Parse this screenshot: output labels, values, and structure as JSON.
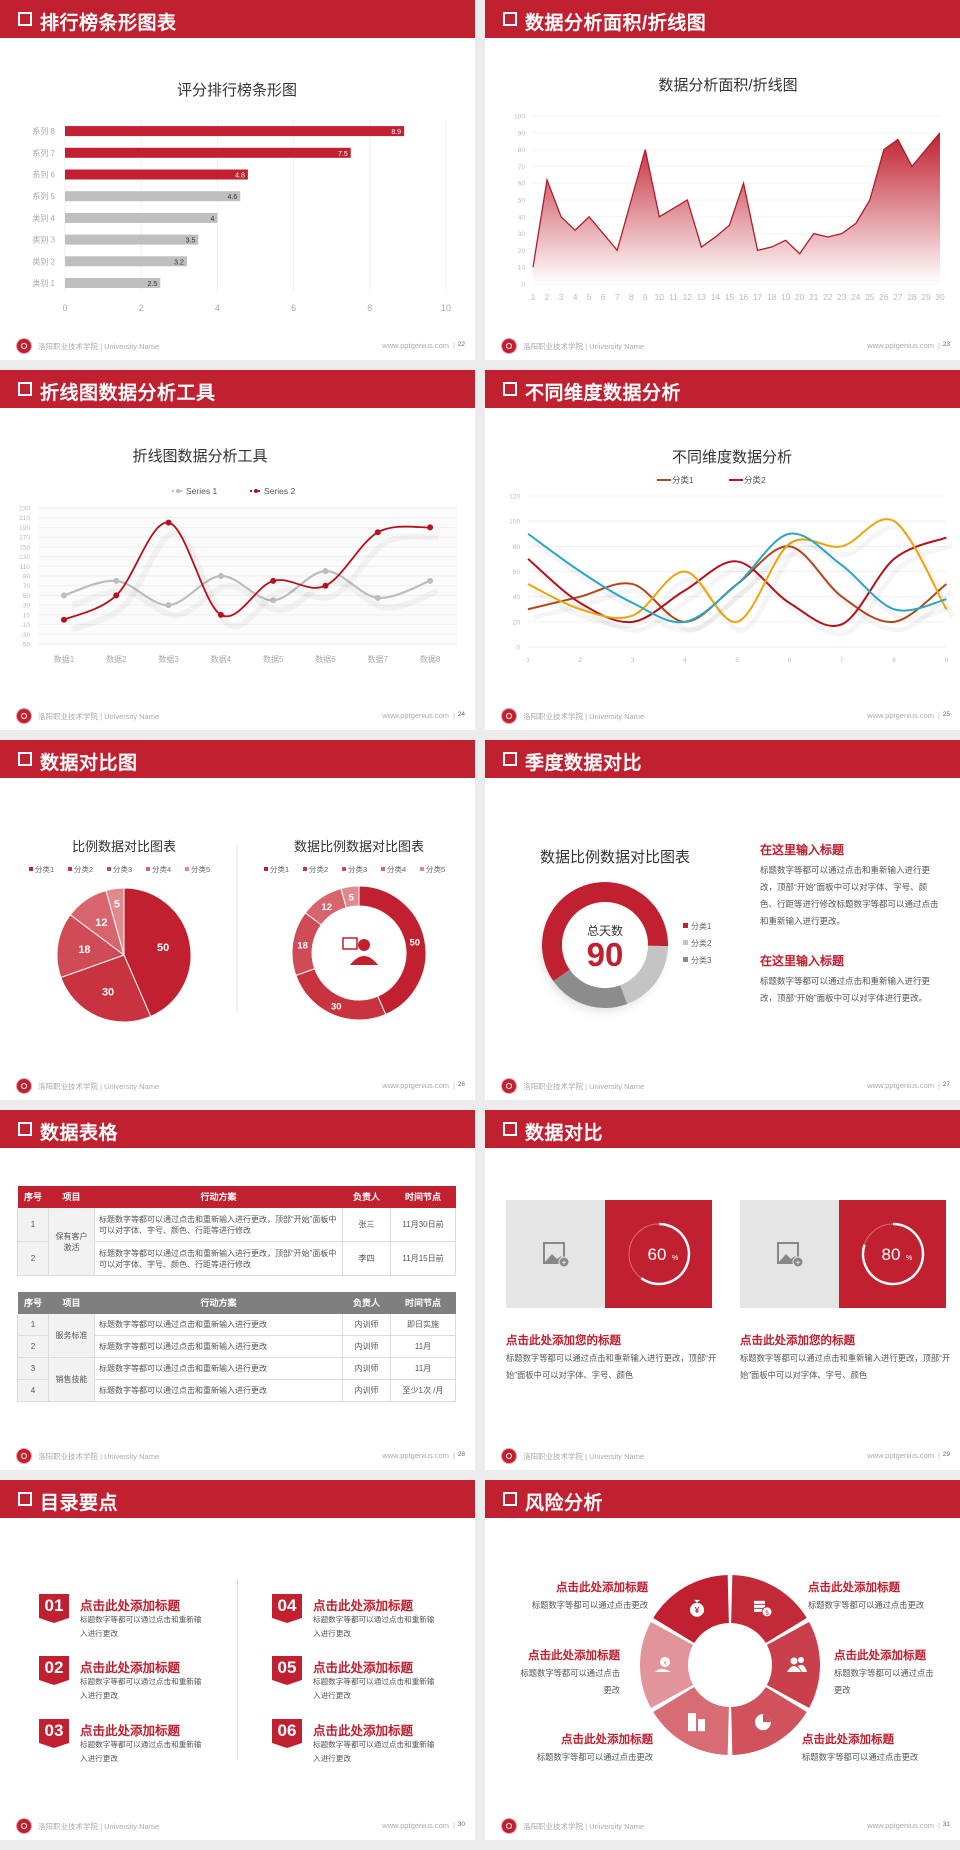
{
  "footer": {
    "school": "洛阳职业技术学院 | University Name",
    "url": "www.pptgenius.com",
    "separator": "|"
  },
  "colors": {
    "brand_red": "#c0202f",
    "gray": "#bfbfbf",
    "dark_gray": "#8c8c8c"
  },
  "slides": [
    {
      "title": "排行榜条形图表",
      "page": "22"
    },
    {
      "title": "数据分析面积/折线图",
      "page": "23"
    },
    {
      "title": "折线图数据分析工具",
      "page": "24"
    },
    {
      "title": "不同维度数据分析",
      "page": "25"
    },
    {
      "title": "数据对比图",
      "page": "26"
    },
    {
      "title": "季度数据对比",
      "page": "27"
    },
    {
      "title": "数据表格",
      "page": "28"
    },
    {
      "title": "数据对比",
      "page": "29"
    },
    {
      "title": "目录要点",
      "page": "30"
    },
    {
      "title": "风险分析",
      "page": "31"
    }
  ],
  "header_icon": "checkbox-square-icon",
  "chart_data": [
    {
      "type": "bar",
      "orientation": "horizontal",
      "title": "评分排行榜条形图",
      "categories": [
        "类别 1",
        "类别 2",
        "类别 3",
        "类别 4",
        "系列 5",
        "系列 6",
        "系列 7",
        "系列 8"
      ],
      "values": [
        2.5,
        3.2,
        3.5,
        4,
        4.6,
        4.8,
        7.5,
        8.9
      ],
      "highlight": [
        false,
        false,
        false,
        false,
        false,
        true,
        true,
        true
      ],
      "xlim": [
        0,
        10
      ],
      "xticks": [
        0,
        2,
        4,
        6,
        8,
        10
      ],
      "grid": true,
      "data_labels": true
    },
    {
      "type": "area",
      "title": "数据分析面积/折线图",
      "x": [
        1,
        2,
        3,
        4,
        5,
        6,
        7,
        8,
        9,
        10,
        11,
        12,
        13,
        14,
        15,
        16,
        17,
        18,
        19,
        20,
        21,
        22,
        23,
        24,
        25,
        26,
        27,
        28,
        29,
        30
      ],
      "values": [
        10,
        62,
        40,
        32,
        40,
        30,
        20,
        50,
        80,
        40,
        45,
        50,
        22,
        28,
        35,
        60,
        20,
        22,
        26,
        18,
        30,
        28,
        30,
        36,
        50,
        80,
        86,
        70,
        80,
        90
      ],
      "ylim": [
        0,
        100
      ],
      "yticks": [
        0,
        10,
        20,
        30,
        40,
        50,
        60,
        70,
        80,
        90,
        100
      ],
      "grid": true,
      "color": "#b01c2b"
    },
    {
      "type": "line",
      "smooth": true,
      "title": "折线图数据分析工具",
      "categories": [
        "数据1",
        "数据2",
        "数据3",
        "数据4",
        "数据5",
        "数据6",
        "数据7",
        "数据8"
      ],
      "series": [
        {
          "name": "Series 1",
          "values": [
            50,
            80,
            30,
            90,
            40,
            100,
            45,
            80
          ],
          "color": "#bdbdbd"
        },
        {
          "name": "Series 2",
          "values": [
            0,
            50,
            200,
            10,
            80,
            70,
            180,
            190
          ],
          "color": "#b5121b"
        }
      ],
      "ylim": [
        -50,
        230
      ],
      "yticks": [
        -50,
        -30,
        -10,
        10,
        30,
        50,
        70,
        90,
        110,
        130,
        150,
        170,
        190,
        210,
        230
      ],
      "legend": "top",
      "grid": true
    },
    {
      "type": "line",
      "smooth": true,
      "title": "不同维度数据分析",
      "x": [
        1,
        2,
        3,
        4,
        5,
        6,
        7,
        8,
        9
      ],
      "series": [
        {
          "name": "分类1",
          "values": [
            30,
            40,
            50,
            20,
            50,
            80,
            40,
            20,
            50
          ],
          "color": "#b5451b"
        },
        {
          "name": "分类2",
          "values": [
            70,
            35,
            20,
            45,
            68,
            35,
            18,
            70,
            87
          ],
          "color": "#b5121b"
        },
        {
          "values": [
            50,
            30,
            25,
            60,
            20,
            82,
            80,
            100,
            30
          ],
          "color": "#f0a30a"
        },
        {
          "values": [
            90,
            60,
            35,
            20,
            50,
            90,
            65,
            30,
            38
          ],
          "color": "#2aa7c4"
        }
      ],
      "ylim": [
        0,
        120
      ],
      "yticks": [
        0,
        20,
        40,
        60,
        80,
        100,
        120
      ],
      "legend": "top",
      "grid": true
    },
    {
      "type": "pie",
      "title": "比例数据对比图表",
      "categories": [
        "分类1",
        "分类2",
        "分类3",
        "分类4",
        "分类5"
      ],
      "values": [
        50,
        30,
        18,
        12,
        5
      ],
      "colors": [
        "#c0202f",
        "#c8333f",
        "#cf4b56",
        "#d8646d",
        "#e08a90"
      ],
      "legend": "top"
    },
    {
      "type": "pie",
      "donut": true,
      "title": "数据比例数据对比图表",
      "categories": [
        "分类1",
        "分类2",
        "分类3",
        "分类4",
        "分类5"
      ],
      "values": [
        50,
        30,
        18,
        12,
        5
      ],
      "colors": [
        "#c0202f",
        "#c8333f",
        "#cf4b56",
        "#d8646d",
        "#e08a90"
      ],
      "legend": "top",
      "center_icon": "presenter-icon"
    },
    {
      "type": "pie",
      "donut": true,
      "title": "数据比例数据对比图表",
      "center_label": "总天数",
      "center_value": "90",
      "categories": [
        "分类1",
        "分类2",
        "分类3"
      ],
      "values": [
        60,
        19,
        21
      ],
      "colors": [
        "#c0202f",
        "#c4c4c4",
        "#8c8c8c"
      ],
      "legend": "right"
    }
  ],
  "slide27": {
    "blocks": [
      {
        "heading": "在这里输入标题",
        "text": "标题数字等都可以通过点击和重新输入进行更改，顶部“开始”面板中可以对字体、字号、颜色、行距等进行修改标题数字等都可以通过点击和重新输入进行更改。"
      },
      {
        "heading": "在这里输入标题",
        "text": "标题数字等都可以通过点击和重新输入进行更改，顶部“开始”面板中可以对字体进行更改。"
      }
    ]
  },
  "table": {
    "headers": [
      "序号",
      "项目",
      "行动方案",
      "负责人",
      "时间节点"
    ],
    "table1": {
      "group": "保有客户激活",
      "rows": [
        {
          "no": "1",
          "plan": "标题数字等都可以通过点击和重新输入进行更改，顶部“开始”面板中可以对字体、字号、颜色、行距等进行修改",
          "owner": "张三",
          "time": "11月30日前"
        },
        {
          "no": "2",
          "plan": "标题数字等都可以通过点击和重新输入进行更改，顶部“开始”面板中可以对字体、字号、颜色、行距等进行修改",
          "owner": "李四",
          "time": "11月15日前"
        }
      ]
    },
    "table2": {
      "groups": [
        "服务标准",
        "销售技能"
      ],
      "rows": [
        {
          "no": "1",
          "plan": "标题数字等都可以通过点击和重新输入进行更改",
          "owner": "内训师",
          "time": "即日实施"
        },
        {
          "no": "2",
          "plan": "标题数字等都可以通过点击和重新输入进行更改",
          "owner": "内训师",
          "time": "11月"
        },
        {
          "no": "3",
          "plan": "标题数字等都可以通过点击和重新输入进行更改",
          "owner": "内训师",
          "time": "11月"
        },
        {
          "no": "4",
          "plan": "标题数字等都可以通过点击和重新输入进行更改",
          "owner": "内训师",
          "time": "至少1次 /月"
        }
      ]
    }
  },
  "compare": {
    "cards": [
      {
        "percent": 60,
        "value": "60",
        "unit": "%",
        "heading": "点击此处添加您的标题",
        "text": "标题数字等都可以通过点击和重新输入进行更改，顶部“开始”面板中可以对字体、字号、颜色",
        "image_icon": "image-add-icon"
      },
      {
        "percent": 80,
        "value": "80",
        "unit": "%",
        "heading": "点击此处添加您的标题",
        "text": "标题数字等都可以通过点击和重新输入进行更改，顶部“开始”面板中可以对字体、字号、颜色",
        "image_icon": "image-add-icon"
      }
    ]
  },
  "toc": {
    "items": [
      {
        "num": "01",
        "title": "点击此处添加标题",
        "text": "标题数字等都可以通过点击和重新输入进行更改"
      },
      {
        "num": "02",
        "title": "点击此处添加标题",
        "text": "标题数字等都可以通过点击和重新输入进行更改"
      },
      {
        "num": "03",
        "title": "点击此处添加标题",
        "text": "标题数字等都可以通过点击和重新输入进行更改"
      },
      {
        "num": "04",
        "title": "点击此处添加标题",
        "text": "标题数字等都可以通过点击和重新输入进行更改"
      },
      {
        "num": "05",
        "title": "点击此处添加标题",
        "text": "标题数字等都可以通过点击和重新输入进行更改"
      },
      {
        "num": "06",
        "title": "点击此处添加标题",
        "text": "标题数字等都可以通过点击和重新输入进行更改"
      }
    ]
  },
  "risk": {
    "items": [
      {
        "title": "点击此处添加标题",
        "text": "标题数字等都可以通过点击更改",
        "icon": "money-bag-icon"
      },
      {
        "title": "点击此处添加标题",
        "text": "标题数字等都可以通过点击更改",
        "icon": "coins-icon"
      },
      {
        "title": "点击此处添加标题",
        "text": "标题数字等都可以通过点击更改",
        "icon": "users-icon"
      },
      {
        "title": "点击此处添加标题",
        "text": "标题数字等都可以通过点击更改",
        "icon": "pie-chart-icon"
      },
      {
        "title": "点击此处添加标题",
        "text": "标题数字等都可以通过点击更改",
        "icon": "building-icon"
      },
      {
        "title": "点击此处添加标题",
        "text": "标题数字等都可以通过点击更改",
        "icon": "yen-hand-icon"
      }
    ]
  }
}
